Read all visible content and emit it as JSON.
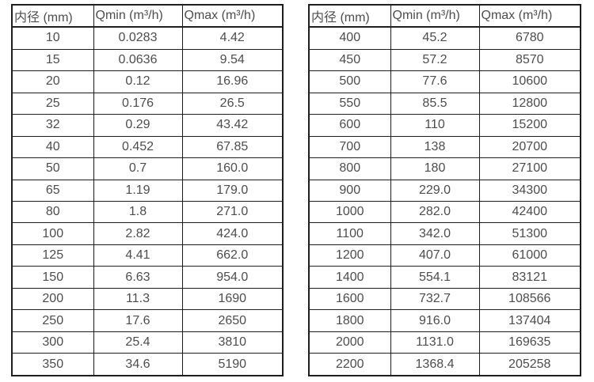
{
  "page": {
    "background_color": "#ffffff",
    "text_color": "#4d4d4d",
    "border_color": "#1e1e1e",
    "description": "Flow meter specification tables: inner diameter vs minimum and maximum flow rate"
  },
  "tables": [
    {
      "headers": [
        "内径 (mm)",
        "Qmin (m³/h)",
        "Qmax (m³/h)"
      ],
      "rows": [
        [
          "10",
          "0.0283",
          "4.42"
        ],
        [
          "15",
          "0.0636",
          "9.54"
        ],
        [
          "20",
          "0.12",
          "16.96"
        ],
        [
          "25",
          "0.176",
          "26.5"
        ],
        [
          "32",
          "0.29",
          "43.42"
        ],
        [
          "40",
          "0.452",
          "67.85"
        ],
        [
          "50",
          "0.7",
          "160.0"
        ],
        [
          "65",
          "1.19",
          "179.0"
        ],
        [
          "80",
          "1.8",
          "271.0"
        ],
        [
          "100",
          "2.82",
          "424.0"
        ],
        [
          "125",
          "4.41",
          "662.0"
        ],
        [
          "150",
          "6.63",
          "954.0"
        ],
        [
          "200",
          "11.3",
          "1690"
        ],
        [
          "250",
          "17.6",
          "2650"
        ],
        [
          "300",
          "25.4",
          "3810"
        ],
        [
          "350",
          "34.6",
          "5190"
        ]
      ]
    },
    {
      "headers": [
        "内径 (mm)",
        "Qmin (m³/h)",
        "Qmax (m³/h)"
      ],
      "rows": [
        [
          "400",
          "45.2",
          "6780"
        ],
        [
          "450",
          "57.2",
          "8570"
        ],
        [
          "500",
          "77.6",
          "10600"
        ],
        [
          "550",
          "85.5",
          "12800"
        ],
        [
          "600",
          "110",
          "15200"
        ],
        [
          "700",
          "138",
          "20700"
        ],
        [
          "800",
          "180",
          "27100"
        ],
        [
          "900",
          "229.0",
          "34300"
        ],
        [
          "1000",
          "282.0",
          "42400"
        ],
        [
          "1100",
          "342.0",
          "51300"
        ],
        [
          "1200",
          "407.0",
          "61000"
        ],
        [
          "1400",
          "554.1",
          "83121"
        ],
        [
          "1600",
          "732.7",
          "108566"
        ],
        [
          "1800",
          "916.0",
          "137404"
        ],
        [
          "2000",
          "1131.0",
          "169635"
        ],
        [
          "2200",
          "1368.4",
          "205258"
        ]
      ]
    }
  ]
}
